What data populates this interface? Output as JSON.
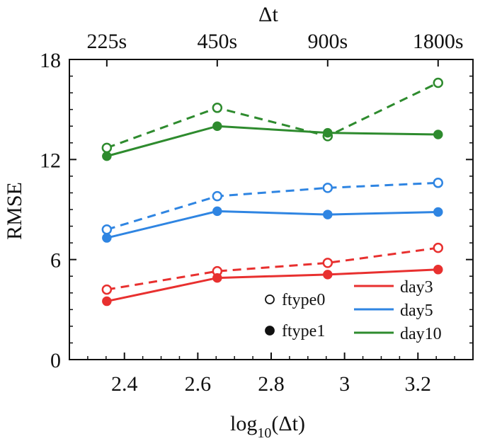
{
  "chart_data": {
    "type": "line",
    "xlabel_base": "log",
    "xlabel_sub": "10",
    "xlabel_rest": "(Δt)",
    "ylabel": "RMSE",
    "top_axis_title": "Δt",
    "xlim": [
      2.25,
      3.35
    ],
    "ylim": [
      0,
      18
    ],
    "x_ticks": [
      2.4,
      2.6,
      2.8,
      3.0,
      3.2
    ],
    "x_tick_labels": [
      "2.4",
      "2.6",
      "2.8",
      "3",
      "3.2"
    ],
    "y_ticks": [
      0,
      6,
      12,
      18
    ],
    "y_tick_labels": [
      "0",
      "6",
      "12",
      "18"
    ],
    "top_ticks": [
      2.352,
      2.653,
      2.954,
      3.255
    ],
    "top_tick_labels": [
      "225s",
      "450s",
      "900s",
      "1800s"
    ],
    "x": [
      2.352,
      2.653,
      2.954,
      3.255
    ],
    "series": [
      {
        "name": "day3",
        "ftype": "ftype0",
        "color": "#e8302f",
        "dashed": true,
        "filled": false,
        "values": [
          4.2,
          5.3,
          5.8,
          6.7
        ]
      },
      {
        "name": "day3",
        "ftype": "ftype1",
        "color": "#e8302f",
        "dashed": false,
        "filled": true,
        "values": [
          3.5,
          4.9,
          5.1,
          5.4
        ]
      },
      {
        "name": "day5",
        "ftype": "ftype0",
        "color": "#2f85e2",
        "dashed": true,
        "filled": false,
        "values": [
          7.8,
          9.8,
          10.3,
          10.6
        ]
      },
      {
        "name": "day5",
        "ftype": "ftype1",
        "color": "#2f85e2",
        "dashed": false,
        "filled": true,
        "values": [
          7.3,
          8.9,
          8.7,
          8.85
        ]
      },
      {
        "name": "day10",
        "ftype": "ftype0",
        "color": "#2e8b2e",
        "dashed": true,
        "filled": false,
        "values": [
          12.7,
          15.1,
          13.4,
          16.6
        ]
      },
      {
        "name": "day10",
        "ftype": "ftype1",
        "color": "#2e8b2e",
        "dashed": false,
        "filled": true,
        "values": [
          12.2,
          14.0,
          13.6,
          13.5
        ]
      }
    ],
    "legend_markers": [
      {
        "label": "ftype0",
        "filled": false
      },
      {
        "label": "ftype1",
        "filled": true
      }
    ],
    "legend_lines": [
      {
        "label": "day3",
        "color": "#e8302f"
      },
      {
        "label": "day5",
        "color": "#2f85e2"
      },
      {
        "label": "day10",
        "color": "#2e8b2e"
      }
    ]
  }
}
